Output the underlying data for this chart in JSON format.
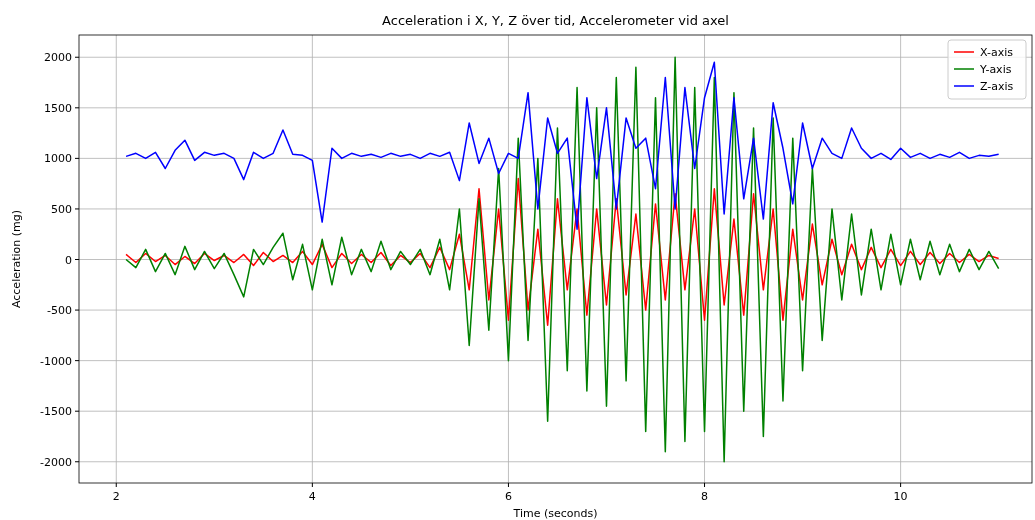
{
  "chart_data": {
    "type": "line",
    "title": "Acceleration i X, Y, Z över tid, Accelerometer vid axel",
    "xlabel": "Time (seconds)",
    "ylabel": "Acceleration (mg)",
    "x": [
      2.1,
      2.2,
      2.3,
      2.4,
      2.5,
      2.6,
      2.7,
      2.8,
      2.9,
      3.0,
      3.1,
      3.2,
      3.3,
      3.4,
      3.5,
      3.6,
      3.7,
      3.8,
      3.9,
      4.0,
      4.1,
      4.2,
      4.3,
      4.4,
      4.5,
      4.6,
      4.7,
      4.8,
      4.9,
      5.0,
      5.1,
      5.2,
      5.3,
      5.4,
      5.5,
      5.6,
      5.7,
      5.8,
      5.9,
      6.0,
      6.1,
      6.2,
      6.3,
      6.4,
      6.5,
      6.6,
      6.7,
      6.8,
      6.9,
      7.0,
      7.1,
      7.2,
      7.3,
      7.4,
      7.5,
      7.6,
      7.7,
      7.8,
      7.9,
      8.0,
      8.1,
      8.2,
      8.3,
      8.4,
      8.5,
      8.6,
      8.7,
      8.8,
      8.9,
      9.0,
      9.1,
      9.2,
      9.3,
      9.4,
      9.5,
      9.6,
      9.7,
      9.8,
      9.9,
      10.0,
      10.1,
      10.2,
      10.3,
      10.4,
      10.5,
      10.6,
      10.7,
      10.8,
      10.9,
      11.0
    ],
    "series": [
      {
        "name": "X-axis",
        "color": "#ff0000",
        "values": [
          50,
          -30,
          60,
          -20,
          40,
          -50,
          30,
          -40,
          60,
          -10,
          40,
          -30,
          50,
          -60,
          70,
          -20,
          40,
          -30,
          80,
          -50,
          150,
          -80,
          60,
          -40,
          50,
          -30,
          70,
          -60,
          40,
          -30,
          60,
          -80,
          120,
          -100,
          250,
          -300,
          700,
          -400,
          500,
          -600,
          800,
          -500,
          300,
          -650,
          600,
          -300,
          500,
          -550,
          500,
          -450,
          600,
          -350,
          450,
          -500,
          550,
          -400,
          650,
          -300,
          500,
          -600,
          700,
          -450,
          400,
          -550,
          650,
          -300,
          500,
          -600,
          300,
          -400,
          350,
          -250,
          200,
          -150,
          150,
          -100,
          120,
          -80,
          100,
          -60,
          80,
          -50,
          70,
          -40,
          60,
          -30,
          50,
          -20,
          40,
          10
        ]
      },
      {
        "name": "Y-axis",
        "color": "#008000",
        "values": [
          0,
          -80,
          100,
          -120,
          60,
          -150,
          130,
          -100,
          80,
          -90,
          60,
          -150,
          -370,
          100,
          -50,
          120,
          260,
          -200,
          150,
          -300,
          200,
          -250,
          220,
          -150,
          100,
          -120,
          180,
          -100,
          80,
          -50,
          100,
          -150,
          200,
          -300,
          500,
          -850,
          600,
          -700,
          900,
          -1000,
          1200,
          -800,
          1000,
          -1600,
          1300,
          -1100,
          1700,
          -1300,
          1500,
          -1450,
          1800,
          -1200,
          1900,
          -1700,
          1600,
          -1900,
          2000,
          -1800,
          1700,
          -1700,
          1800,
          -2000,
          1650,
          -1500,
          1300,
          -1750,
          1400,
          -1400,
          1200,
          -1100,
          900,
          -800,
          500,
          -400,
          450,
          -350,
          300,
          -300,
          250,
          -250,
          200,
          -200,
          180,
          -150,
          150,
          -120,
          100,
          -100,
          80,
          -90
        ]
      },
      {
        "name": "Z-axis",
        "color": "#0000ff",
        "values": [
          1020,
          1050,
          1000,
          1060,
          900,
          1080,
          1180,
          980,
          1060,
          1030,
          1050,
          1000,
          790,
          1060,
          1000,
          1050,
          1280,
          1040,
          1030,
          980,
          370,
          1100,
          1000,
          1050,
          1020,
          1040,
          1010,
          1050,
          1020,
          1040,
          1000,
          1050,
          1020,
          1060,
          780,
          1350,
          950,
          1200,
          850,
          1050,
          1000,
          1650,
          500,
          1400,
          1050,
          1200,
          300,
          1600,
          800,
          1500,
          500,
          1400,
          1100,
          1200,
          700,
          1800,
          500,
          1700,
          900,
          1600,
          1950,
          450,
          1600,
          600,
          1200,
          400,
          1550,
          1100,
          550,
          1350,
          900,
          1200,
          1050,
          1000,
          1300,
          1100,
          1000,
          1050,
          990,
          1100,
          1010,
          1050,
          1000,
          1040,
          1010,
          1060,
          1000,
          1030,
          1020,
          1040
        ]
      }
    ],
    "xlim": [
      1.62,
      11.34
    ],
    "ylim": [
      -2210,
      2220
    ],
    "xticks": [
      2,
      4,
      6,
      8,
      10
    ],
    "yticks": [
      -2000,
      -1500,
      -1000,
      -500,
      0,
      500,
      1000,
      1500,
      2000
    ],
    "grid": true,
    "legend": "top right",
    "marker": "none",
    "line_style": "solid"
  }
}
